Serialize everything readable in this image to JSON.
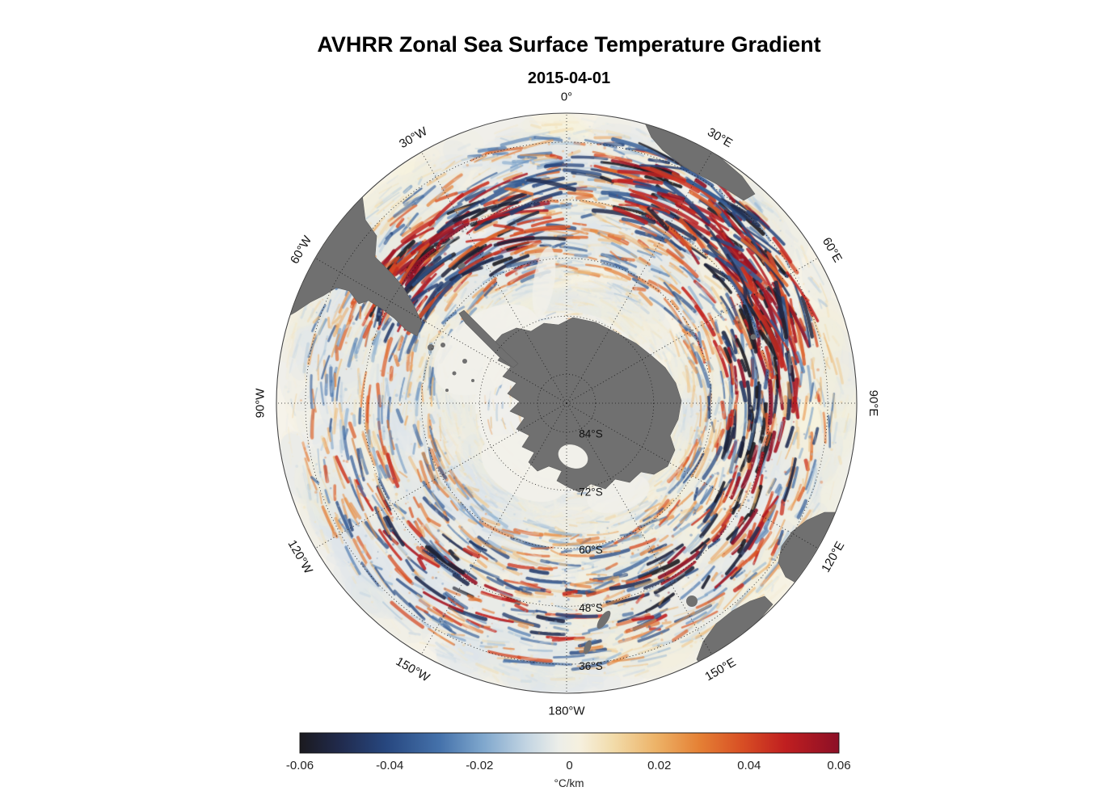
{
  "title": "AVHRR Zonal Sea Surface Temperature Gradient",
  "subtitle": "2015-04-01",
  "chart_data": {
    "type": "heatmap",
    "projection": "south-polar-stereographic",
    "variable": "zonal sea surface temperature gradient",
    "date": "2015-04-01",
    "unit": "°C/km",
    "outer_boundary_lat": -30,
    "grid": "dotted graticule, meridians every 30°, parallels every 12°",
    "meridian_labels": [
      {
        "text": "0°",
        "deg": 0
      },
      {
        "text": "30°E",
        "deg": 30
      },
      {
        "text": "60°E",
        "deg": 60
      },
      {
        "text": "90°E",
        "deg": 90
      },
      {
        "text": "120°E",
        "deg": 120
      },
      {
        "text": "150°E",
        "deg": 150
      },
      {
        "text": "180°W",
        "deg": 180
      },
      {
        "text": "150°W",
        "deg": 210
      },
      {
        "text": "120°W",
        "deg": 240
      },
      {
        "text": "90°W",
        "deg": 270
      },
      {
        "text": "60°W",
        "deg": 300
      },
      {
        "text": "30°W",
        "deg": 330
      }
    ],
    "parallel_labels": [
      {
        "text": "84°S",
        "lat": -84
      },
      {
        "text": "72°S",
        "lat": -72
      },
      {
        "text": "60°S",
        "lat": -60
      },
      {
        "text": "48°S",
        "lat": -48
      },
      {
        "text": "36°S",
        "lat": -36
      }
    ],
    "colorbar": {
      "min": -0.06,
      "max": 0.06,
      "tick_labels": [
        "-0.06",
        "-0.04",
        "-0.02",
        "0",
        "0.02",
        "0.04",
        "0.06"
      ],
      "tick_values": [
        -0.06,
        -0.04,
        -0.02,
        0,
        0.02,
        0.04,
        0.06
      ],
      "unit_label": "°C/km",
      "stops": [
        {
          "pos": 0.0,
          "color": "#1b1a1f"
        },
        {
          "pos": 0.07,
          "color": "#20294a"
        },
        {
          "pos": 0.16,
          "color": "#27477f"
        },
        {
          "pos": 0.26,
          "color": "#4572ab"
        },
        {
          "pos": 0.34,
          "color": "#7fa7cd"
        },
        {
          "pos": 0.42,
          "color": "#c2d4e2"
        },
        {
          "pos": 0.48,
          "color": "#eceee9"
        },
        {
          "pos": 0.52,
          "color": "#f6f0de"
        },
        {
          "pos": 0.58,
          "color": "#f2dcab"
        },
        {
          "pos": 0.66,
          "color": "#edb368"
        },
        {
          "pos": 0.74,
          "color": "#e58135"
        },
        {
          "pos": 0.82,
          "color": "#d84f24"
        },
        {
          "pos": 0.9,
          "color": "#c01f20"
        },
        {
          "pos": 1.0,
          "color": "#8c0f26"
        }
      ]
    },
    "land_color": "#707070",
    "ice_color": "#f1f0ea",
    "ocean_base_color": "#f6f3ea",
    "grid_color": "#1a1a1a",
    "land_masses": [
      "Antarctica",
      "South America",
      "Africa",
      "Australia",
      "Tasmania",
      "New Zealand"
    ],
    "notes": "Filamentary positive (red) and negative (blue) zonal SST gradients over the Southern Ocean; strongest streaks near 30°E–70°E and 60°W–20°W."
  }
}
